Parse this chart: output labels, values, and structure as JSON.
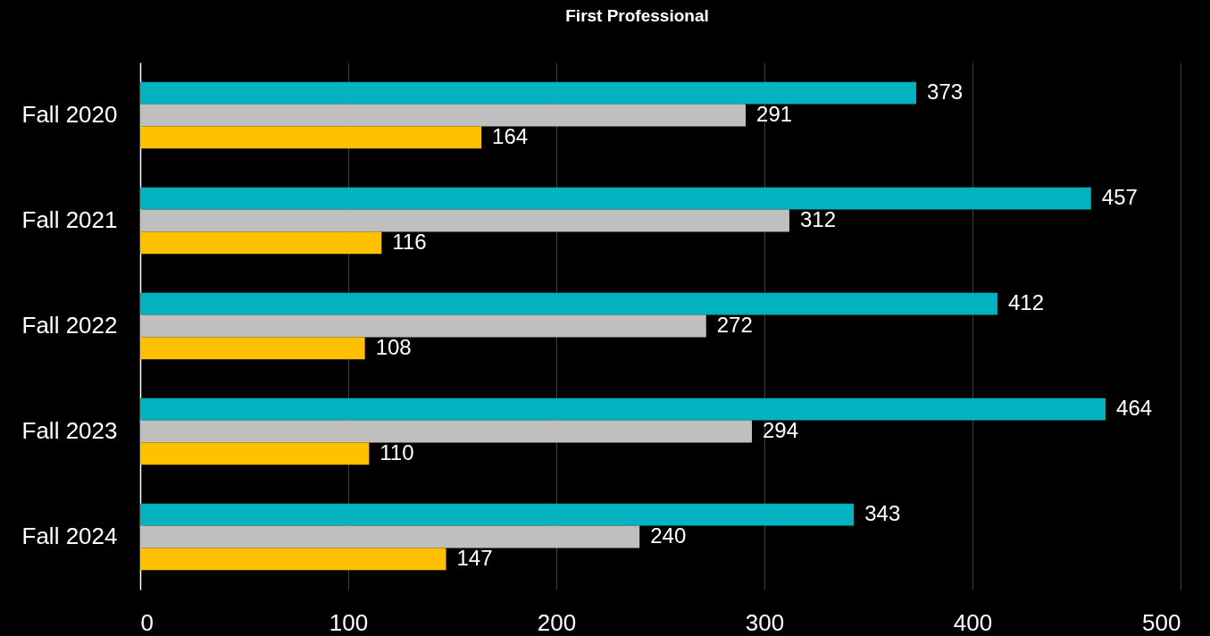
{
  "chart_data": {
    "type": "bar",
    "title": "First Professional",
    "orientation": "horizontal",
    "categories": [
      "Fall 2020",
      "Fall 2021",
      "Fall 2022",
      "Fall 2023",
      "Fall 2024"
    ],
    "series": [
      {
        "color": "#02b2bf",
        "values": [
          373,
          457,
          412,
          464,
          343
        ]
      },
      {
        "color": "#bfbfbf",
        "values": [
          291,
          312,
          272,
          294,
          240
        ]
      },
      {
        "color": "#ffc000",
        "values": [
          164,
          116,
          108,
          110,
          147
        ]
      }
    ],
    "xlim": [
      0,
      500
    ],
    "xticks": [
      0,
      100,
      200,
      300,
      400,
      500
    ],
    "grid": "x",
    "data_labels": true
  }
}
